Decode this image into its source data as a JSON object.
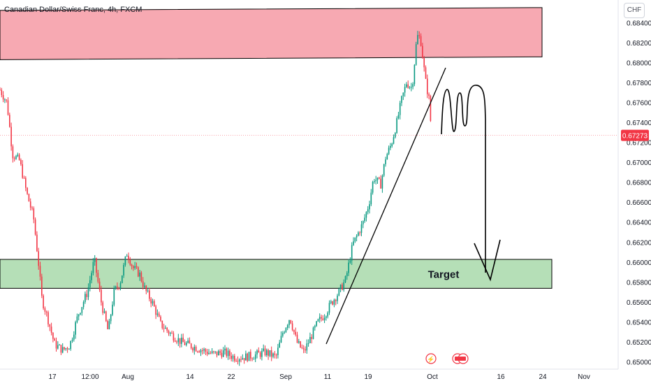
{
  "header": {
    "symbol_title": "Canadian Dollar/Swiss Franc, 4h, FXCM",
    "currency_badge": "CHF"
  },
  "colors": {
    "bull": "#089981",
    "bear": "#f23645",
    "resistance_fill": "#f7a9b2",
    "support_fill": "#b5dfb7",
    "price_line": "#f23645",
    "axis_text": "#131722"
  },
  "chart_data": {
    "type": "candlestick",
    "interval": "4h",
    "ylim": [
      0.6493,
      0.6863
    ],
    "y_ticks": [
      "0.68400",
      "0.68200",
      "0.68000",
      "0.67800",
      "0.67600",
      "0.67400",
      "0.67200",
      "0.67000",
      "0.66800",
      "0.66600",
      "0.66400",
      "0.66200",
      "0.66000",
      "0.65800",
      "0.65600",
      "0.65400",
      "0.65200",
      "0.65000"
    ],
    "x_ticks": [
      "17",
      "12:00",
      "Aug",
      "14",
      "22",
      "Sep",
      "11",
      "19",
      "Oct",
      "16",
      "24",
      "Nov"
    ],
    "current_price": "0.67273",
    "price_path": [
      [
        0,
        0.6773
      ],
      [
        10,
        0.676
      ],
      [
        18,
        0.6708
      ],
      [
        28,
        0.6702
      ],
      [
        38,
        0.667
      ],
      [
        48,
        0.6645
      ],
      [
        55,
        0.66
      ],
      [
        60,
        0.6563
      ],
      [
        68,
        0.6545
      ],
      [
        78,
        0.6518
      ],
      [
        90,
        0.6512
      ],
      [
        100,
        0.6517
      ],
      [
        112,
        0.6548
      ],
      [
        125,
        0.657
      ],
      [
        135,
        0.6603
      ],
      [
        145,
        0.656
      ],
      [
        155,
        0.653
      ],
      [
        163,
        0.657
      ],
      [
        172,
        0.658
      ],
      [
        182,
        0.661
      ],
      [
        190,
        0.6595
      ],
      [
        200,
        0.6588
      ],
      [
        208,
        0.6572
      ],
      [
        218,
        0.656
      ],
      [
        230,
        0.6538
      ],
      [
        245,
        0.6528
      ],
      [
        260,
        0.652
      ],
      [
        275,
        0.6516
      ],
      [
        290,
        0.6512
      ],
      [
        305,
        0.6508
      ],
      [
        320,
        0.651
      ],
      [
        335,
        0.6505
      ],
      [
        350,
        0.6505
      ],
      [
        365,
        0.6507
      ],
      [
        380,
        0.651
      ],
      [
        395,
        0.6505
      ],
      [
        405,
        0.653
      ],
      [
        415,
        0.6545
      ],
      [
        425,
        0.652
      ],
      [
        435,
        0.651
      ],
      [
        445,
        0.6525
      ],
      [
        455,
        0.654
      ],
      [
        465,
        0.6548
      ],
      [
        475,
        0.656
      ],
      [
        485,
        0.657
      ],
      [
        495,
        0.6583
      ],
      [
        505,
        0.6618
      ],
      [
        512,
        0.6628
      ],
      [
        520,
        0.664
      ],
      [
        528,
        0.6658
      ],
      [
        535,
        0.6685
      ],
      [
        545,
        0.6678
      ],
      [
        552,
        0.6705
      ],
      [
        560,
        0.6718
      ],
      [
        568,
        0.674
      ],
      [
        575,
        0.6763
      ],
      [
        582,
        0.678
      ],
      [
        590,
        0.6775
      ],
      [
        597,
        0.6827
      ],
      [
        602,
        0.6825
      ],
      [
        606,
        0.68
      ],
      [
        610,
        0.6778
      ],
      [
        614,
        0.6765
      ],
      [
        618,
        0.6727
      ]
    ],
    "zones": [
      {
        "name": "resistance",
        "y_top": 0.6854,
        "y_bottom": 0.6806
      },
      {
        "name": "support",
        "label": "Target",
        "y_top": 0.6603,
        "y_bottom": 0.6574
      }
    ],
    "event_markers": [
      "dividend-flash",
      "economic-events"
    ]
  }
}
